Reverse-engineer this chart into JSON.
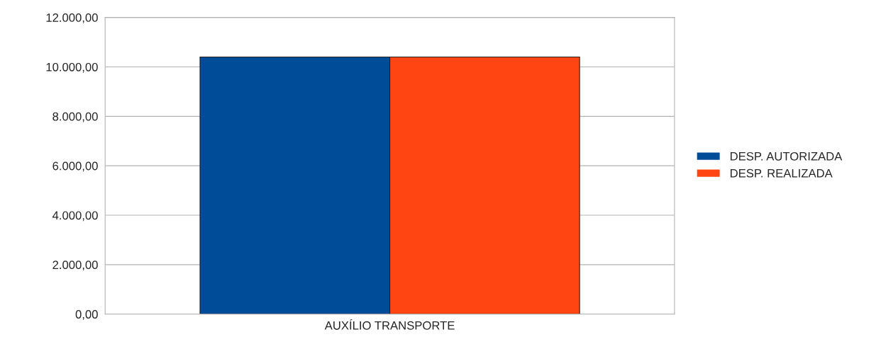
{
  "chart_data": {
    "type": "bar",
    "categories": [
      "AUXÍLIO TRANSPORTE"
    ],
    "series": [
      {
        "name": "DESP. AUTORIZADA",
        "color": "#004c99",
        "values": [
          10400
        ]
      },
      {
        "name": "DESP. REALIZADA",
        "color": "#ff4512",
        "values": [
          10400
        ]
      }
    ],
    "ylim": [
      0,
      12000
    ],
    "yticks": [
      {
        "value": 0,
        "label": "0,00"
      },
      {
        "value": 2000,
        "label": "2.000,00"
      },
      {
        "value": 4000,
        "label": "4.000,00"
      },
      {
        "value": 6000,
        "label": "6.000,00"
      },
      {
        "value": 8000,
        "label": "8.000,00"
      },
      {
        "value": 10000,
        "label": "10.000,00"
      },
      {
        "value": 12000,
        "label": "12.000,00"
      }
    ],
    "grid": "y",
    "legend": "right"
  }
}
